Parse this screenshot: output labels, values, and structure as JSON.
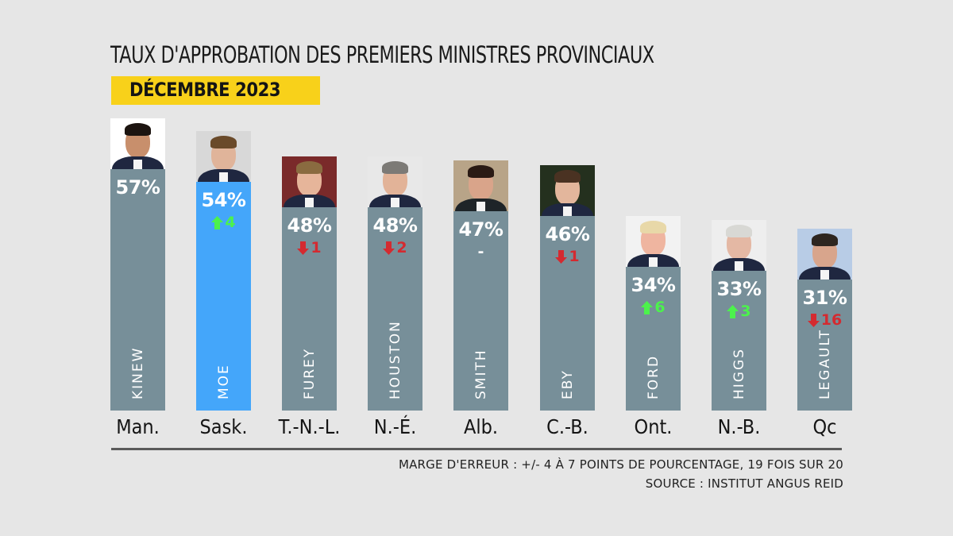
{
  "chart_data": {
    "type": "bar",
    "title": "TAUX D'APPROBATION DES PREMIERS MINISTRES PROVINCIAUX",
    "subtitle": "DÉCEMBRE 2023",
    "xlabel": "",
    "ylabel": "",
    "ylim": [
      0,
      100
    ],
    "grid": false,
    "legend": "none",
    "categories": [
      "Man.",
      "Sask.",
      "T.-N.-L.",
      "N.-É.",
      "Alb.",
      "C.-B.",
      "Ont.",
      "N.-B.",
      "Qc"
    ],
    "names": [
      "KINEW",
      "MOE",
      "FUREY",
      "HOUSTON",
      "SMITH",
      "EBY",
      "FORD",
      "HIGGS",
      "LEGAULT"
    ],
    "values": [
      57,
      54,
      48,
      48,
      47,
      46,
      34,
      33,
      31
    ],
    "value_labels": [
      "57%",
      "54%",
      "48%",
      "48%",
      "47%",
      "46%",
      "34%",
      "33%",
      "31%"
    ],
    "changes": [
      null,
      4,
      -1,
      -2,
      0,
      -1,
      6,
      3,
      -16
    ],
    "change_labels": [
      "",
      "4",
      "1",
      "2",
      "-",
      "1",
      "6",
      "3",
      "16"
    ],
    "highlight_index": 1,
    "colors": {
      "bar": "#778f99",
      "highlight": "#44a6fa",
      "up": "#4cf24c",
      "down": "#d42a30",
      "neutral": "#ffffff",
      "title_box": "#f8d11a"
    }
  },
  "footer": {
    "margin_of_error": "MARGE D'ERREUR : +/- 4 À 7 POINTS DE POURCENTAGE, 19 FOIS SUR 20",
    "source": "SOURCE : INSTITUT ANGUS REID"
  }
}
